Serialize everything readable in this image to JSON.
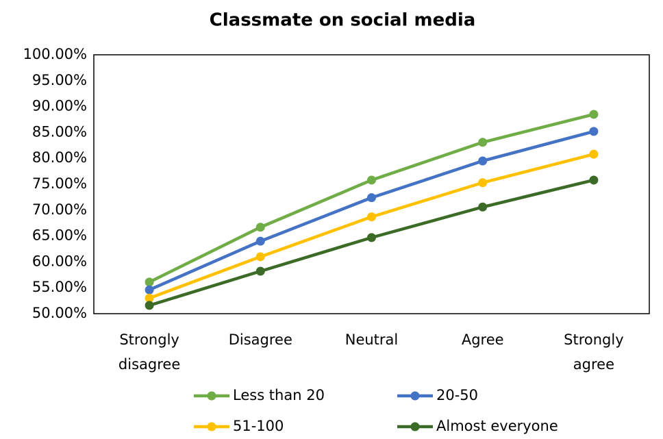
{
  "chart_data": {
    "type": "line",
    "title": "Classmate on social media",
    "categories": [
      "Strongly disagree",
      "Disagree",
      "Neutral",
      "Agree",
      "Strongly agree"
    ],
    "series": [
      {
        "name": "Less than 20",
        "color": "#70ad47",
        "values": [
          56.1,
          66.7,
          75.8,
          83.1,
          88.5
        ]
      },
      {
        "name": "20-50",
        "color": "#4472c4",
        "values": [
          54.6,
          64.0,
          72.4,
          79.5,
          85.2
        ]
      },
      {
        "name": "51-100",
        "color": "#ffc000",
        "values": [
          53.0,
          61.0,
          68.7,
          75.3,
          80.8
        ]
      },
      {
        "name": "Almost everyone",
        "color": "#3b6b26",
        "values": [
          51.6,
          58.2,
          64.7,
          70.6,
          75.8
        ]
      }
    ],
    "ylim": [
      50,
      100
    ],
    "yticks": [
      {
        "value": 50,
        "label": "50.00%"
      },
      {
        "value": 55,
        "label": "55.00%"
      },
      {
        "value": 60,
        "label": "60.00%"
      },
      {
        "value": 65,
        "label": "65.00%"
      },
      {
        "value": 70,
        "label": "70.00%"
      },
      {
        "value": 75,
        "label": "75.00%"
      },
      {
        "value": 80,
        "label": "80.00%"
      },
      {
        "value": 85,
        "label": "85.00%"
      },
      {
        "value": 90,
        "label": "90.00%"
      },
      {
        "value": 95,
        "label": "95.00%"
      },
      {
        "value": 100,
        "label": "100.00%"
      }
    ],
    "grid": false
  }
}
